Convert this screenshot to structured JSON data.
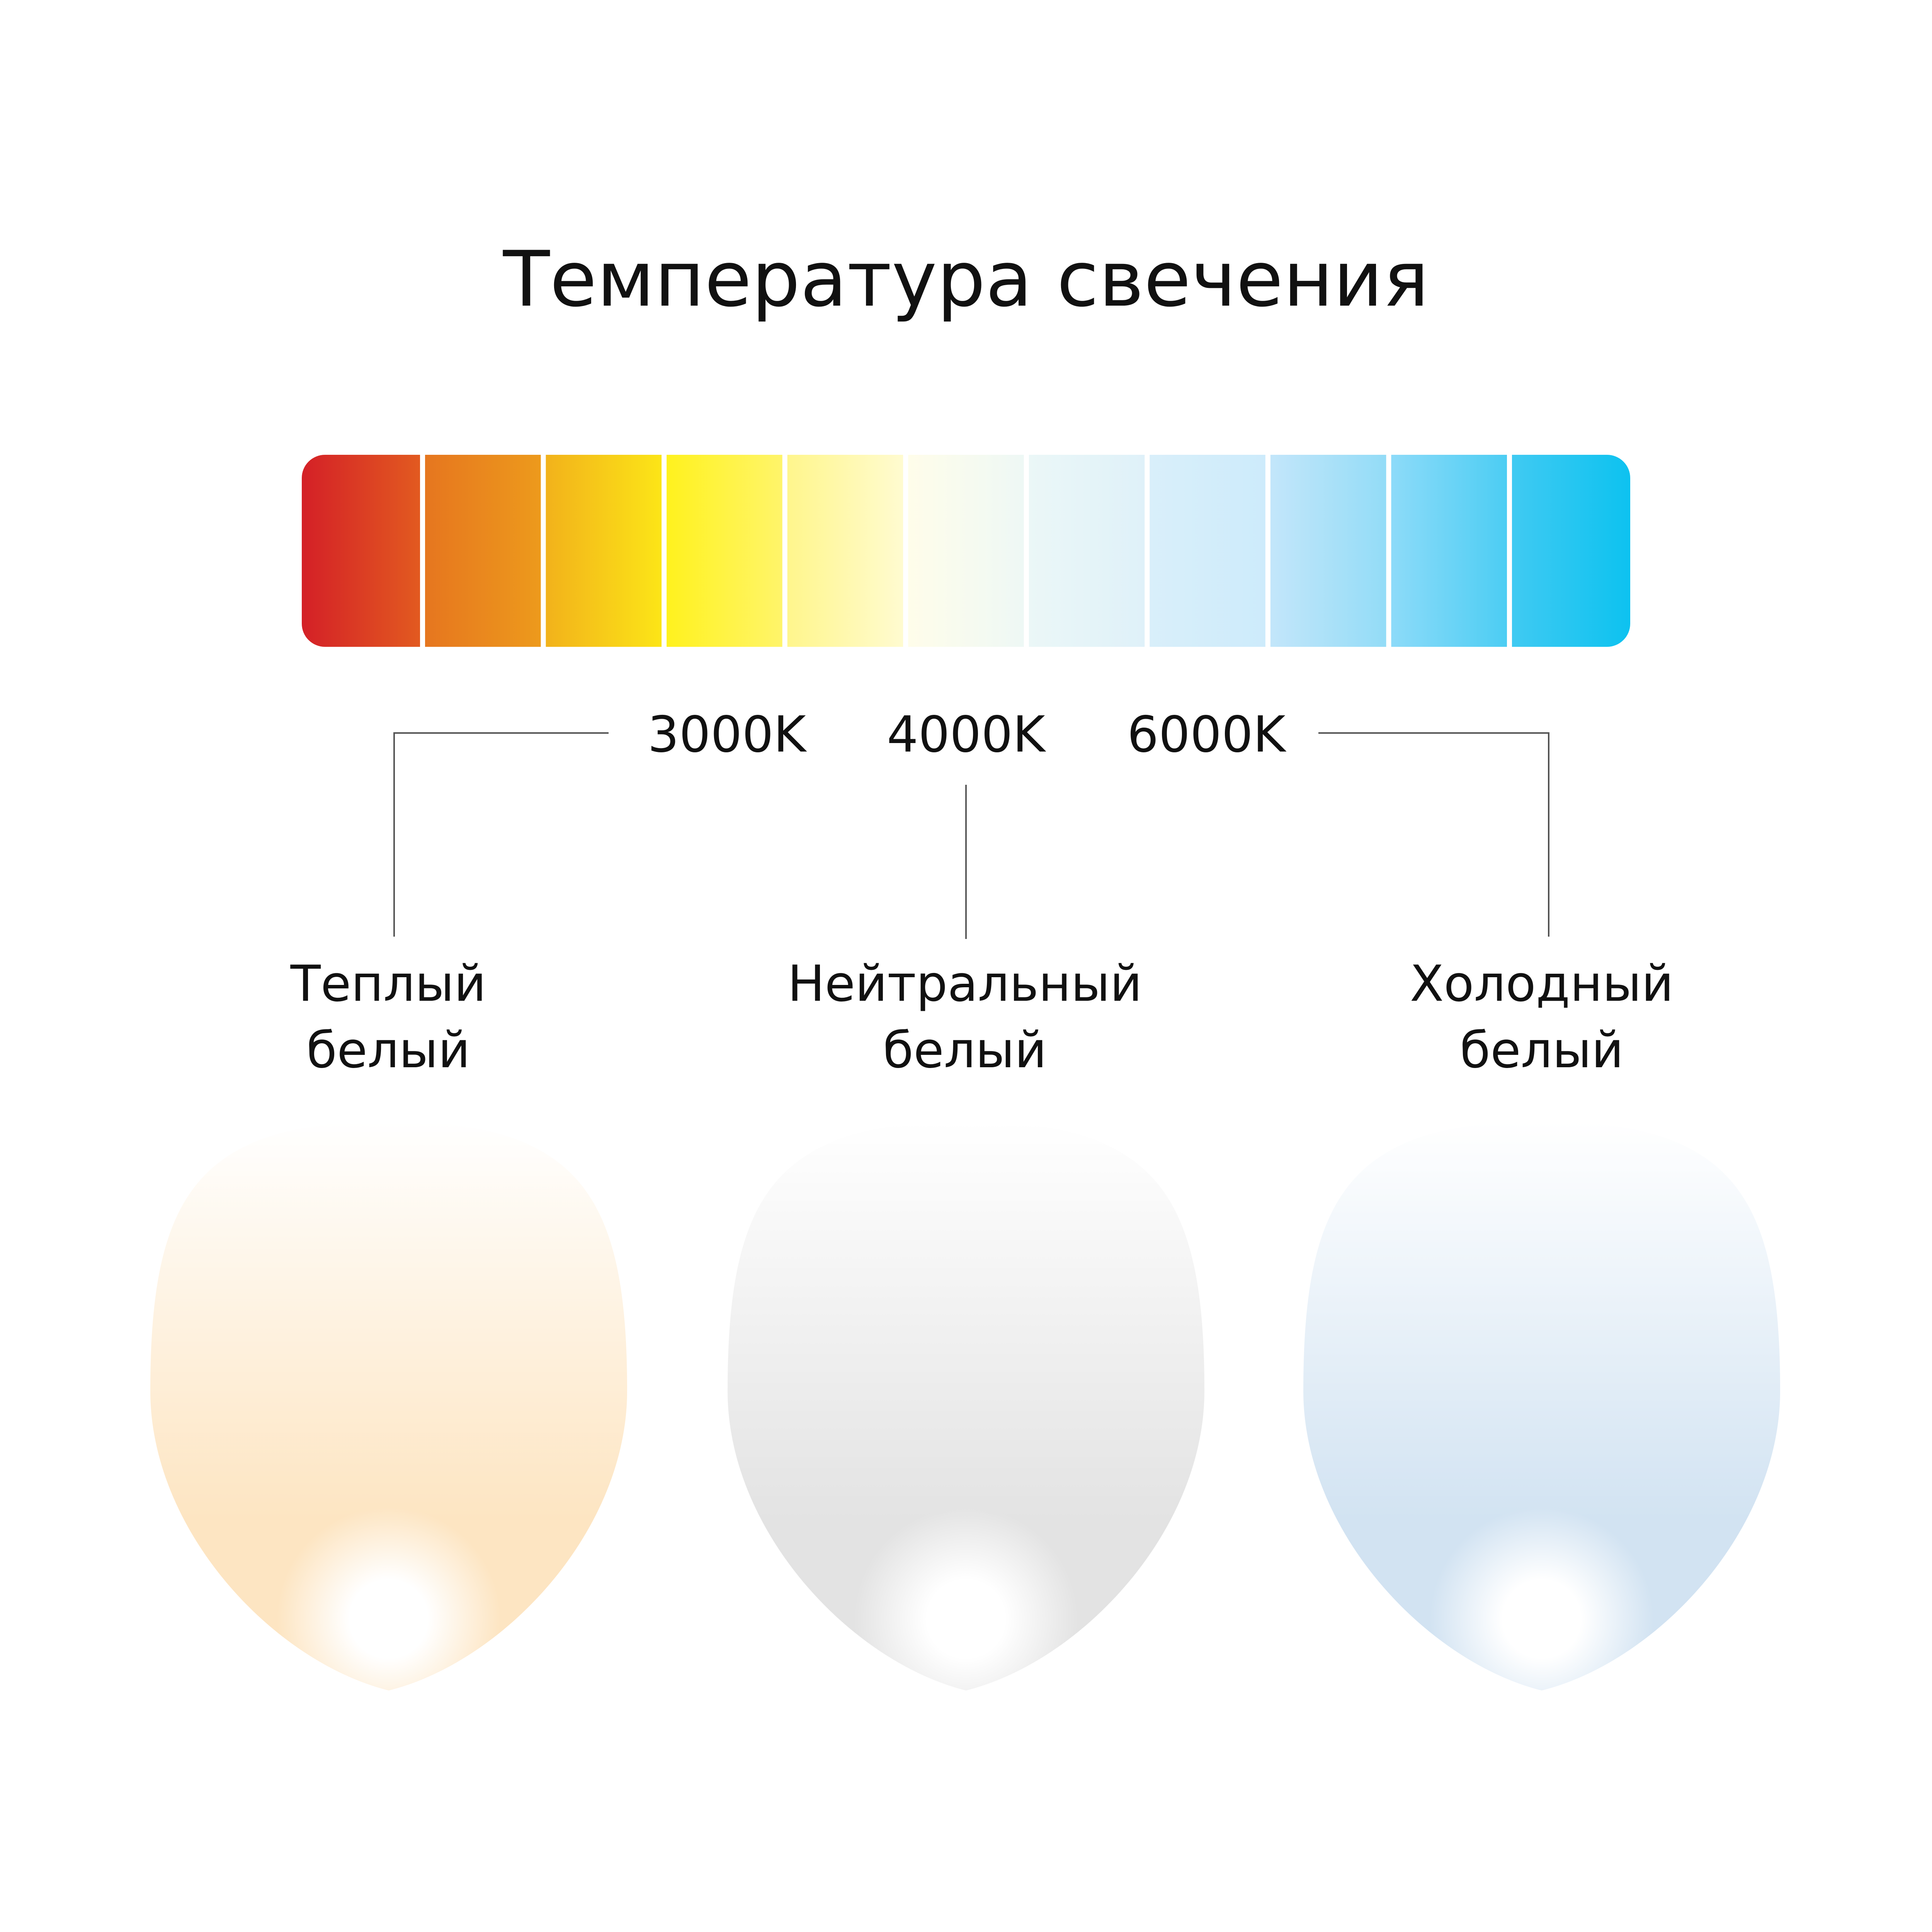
{
  "title": "Температура свечения",
  "scale": {
    "segment_colors": [
      [
        "#d42027",
        "#e25a20"
      ],
      [
        "#e6761f",
        "#ed9a1c"
      ],
      [
        "#f2b21b",
        "#fce517"
      ],
      [
        "#fff21e",
        "#fff46a"
      ],
      [
        "#fff68c",
        "#fffbd0"
      ],
      [
        "#fffdea",
        "#eef8f5"
      ],
      [
        "#ebf7f7",
        "#dff1f9"
      ],
      [
        "#d9effa",
        "#cdebfb"
      ],
      [
        "#c3e6fa",
        "#93dcf7"
      ],
      [
        "#8ddbf9",
        "#4ccdf3"
      ],
      [
        "#40caf2",
        "#0dc2f0"
      ]
    ],
    "temps": [
      "3000K",
      "4000K",
      "6000K"
    ]
  },
  "types": [
    {
      "line1": "Теплый",
      "line2": "белый",
      "color": "#fde5c2"
    },
    {
      "line1": "Нейтральный",
      "line2": "белый",
      "color": "#e3e3e3"
    },
    {
      "line1": "Холодный",
      "line2": "белый",
      "color": "#d2e3f2"
    }
  ]
}
